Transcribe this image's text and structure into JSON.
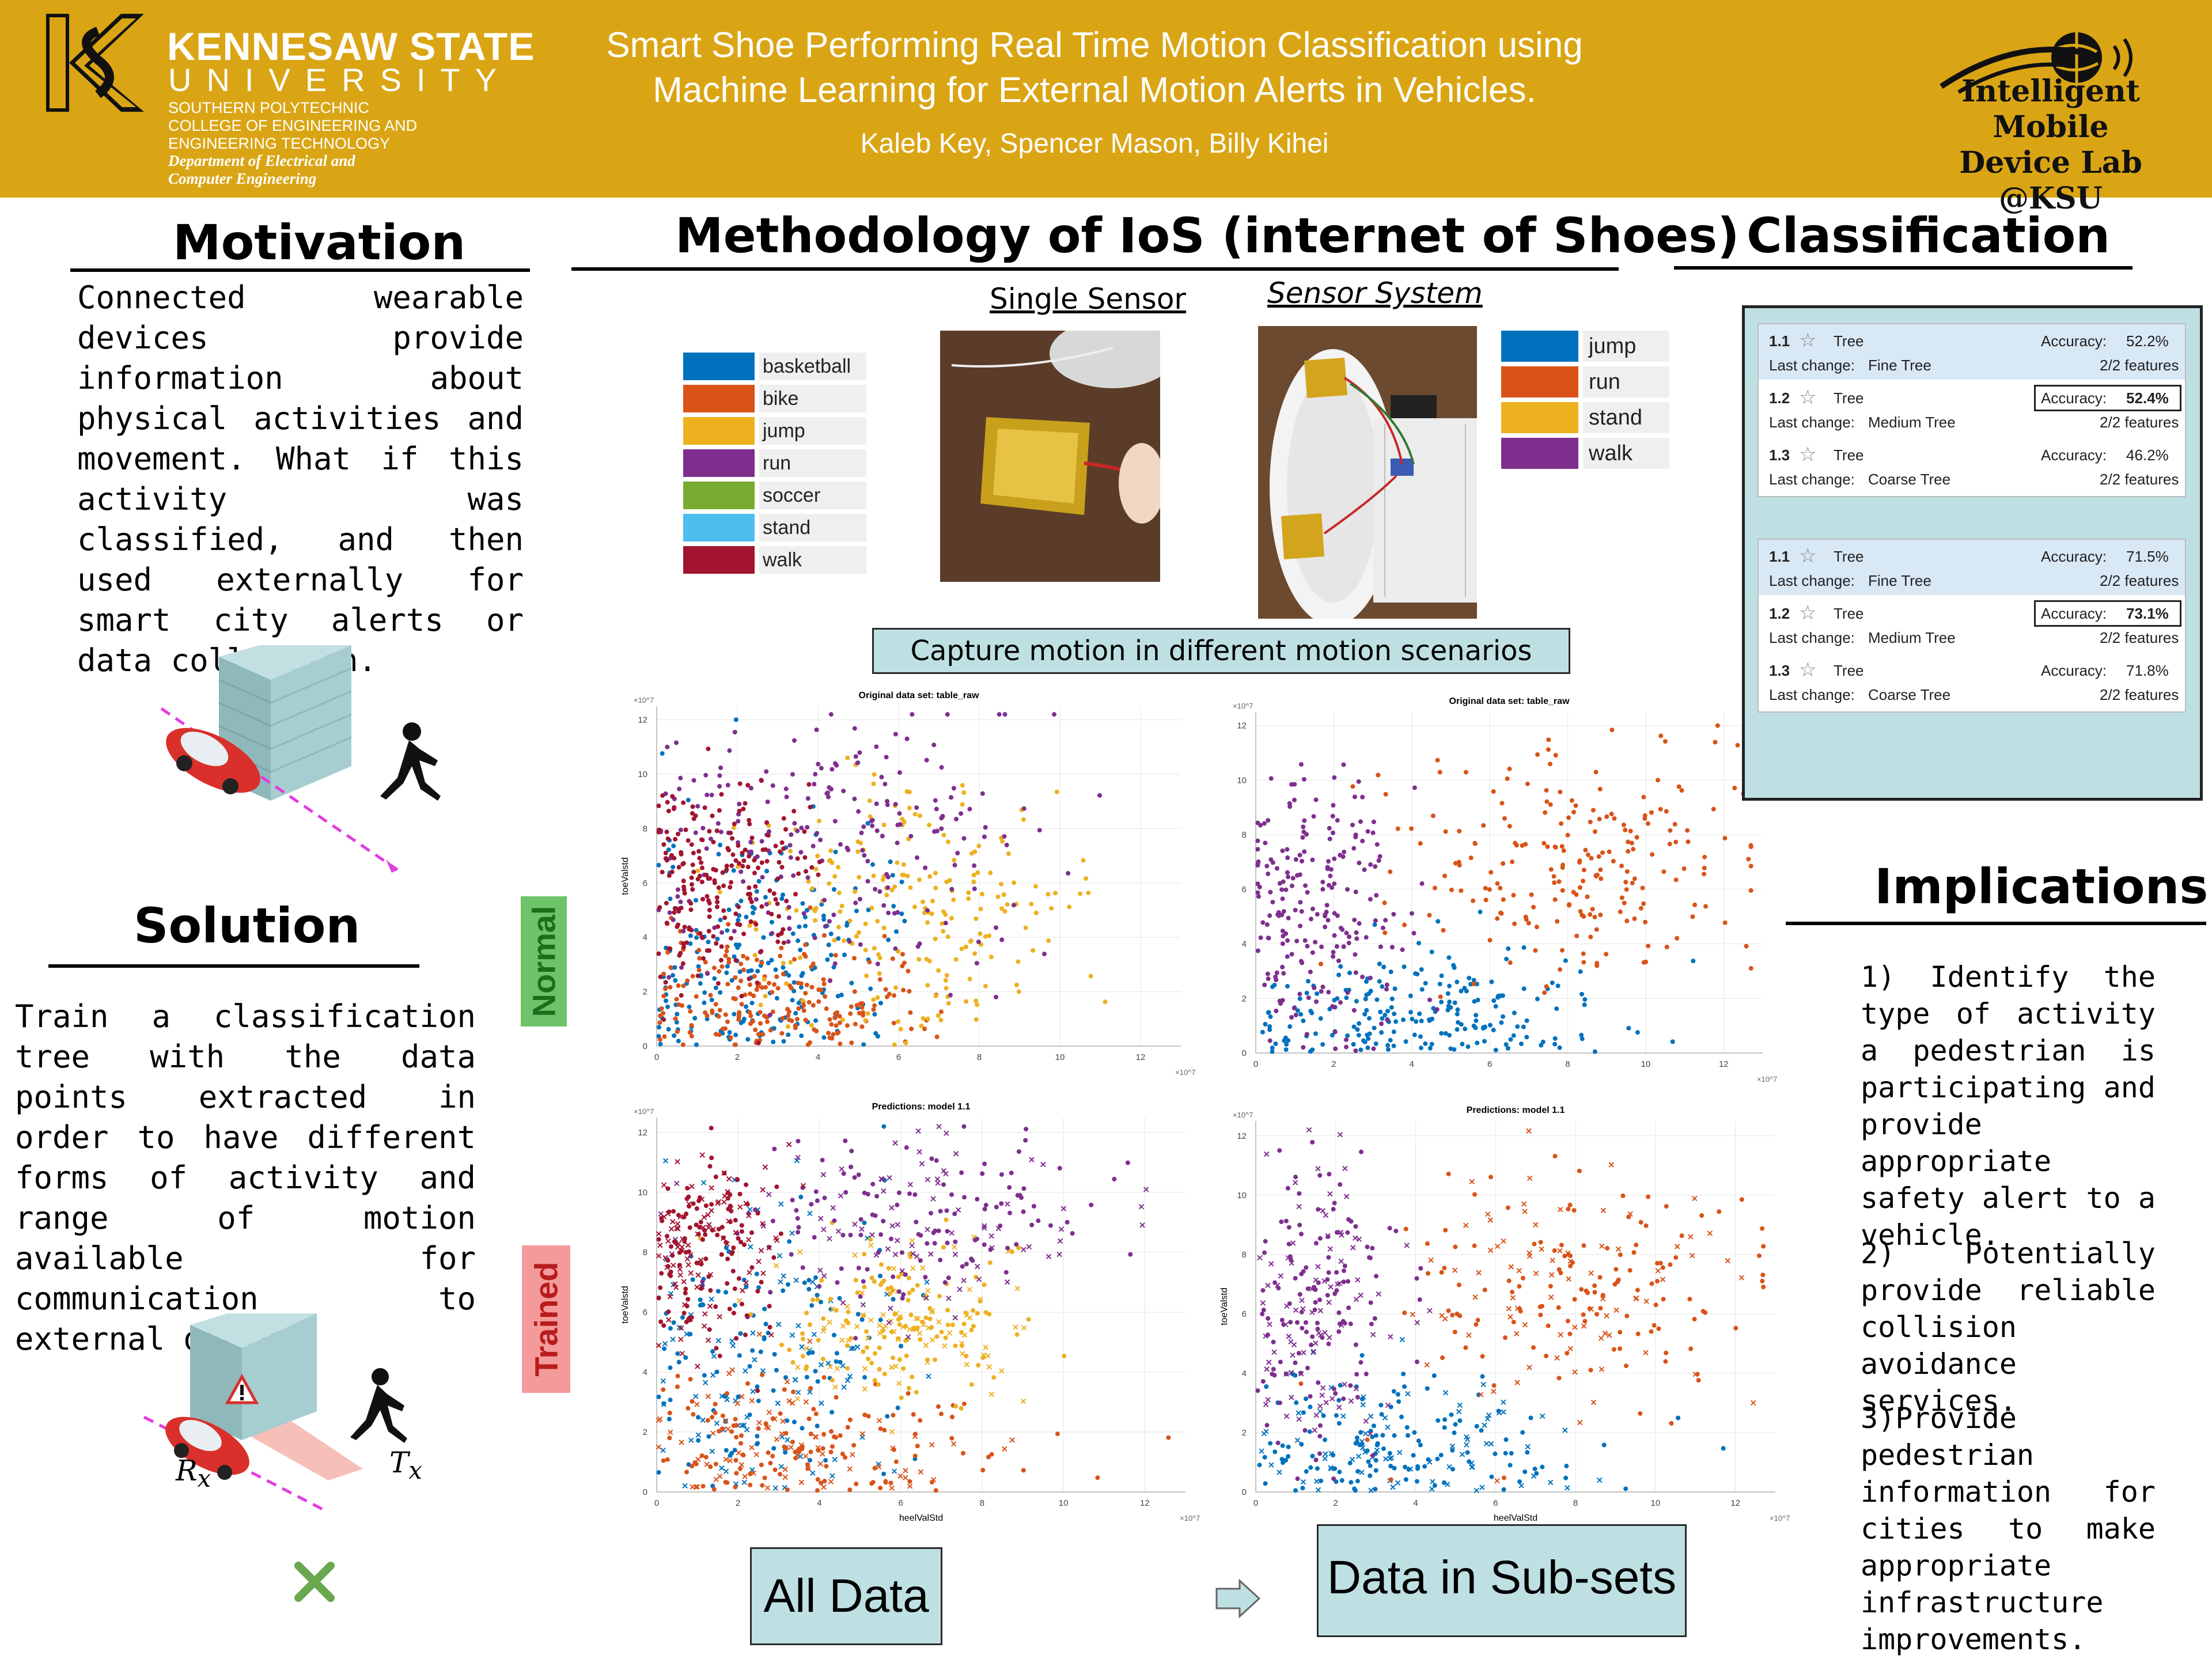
{
  "header": {
    "university_title": "KENNESAW STATE",
    "university_word": "UNIVERSITY",
    "college_line1": "SOUTHERN POLYTECHNIC",
    "college_line2": "COLLEGE OF ENGINEERING AND",
    "college_line3": "ENGINEERING TECHNOLOGY",
    "department_line1": "Department of Electrical and",
    "department_line2": "Computer Engineering",
    "title_line1": "Smart Shoe Performing Real Time Motion Classification using",
    "title_line2": "Machine Learning for External Motion Alerts in Vehicles.",
    "authors": "Kaleb Key, Spencer Mason, Billy Kihei",
    "lab_line1": "Intelligent Mobile",
    "lab_line2": "Device Lab",
    "lab_line3": "@KSU",
    "bg_color": "#DAA515"
  },
  "motivation": {
    "heading": "Motivation",
    "text": "Connected wearable devices provide information about physical activities and movement. What if this activity was classified, and then used externally for smart city alerts or data collection."
  },
  "solution": {
    "heading": "Solution",
    "text": "Train a classification tree with the data points extracted in order to have different forms of activity and range of motion available for communication to external devices",
    "rx_label": "R",
    "rx_sub": "x",
    "tx_label": "T",
    "tx_sub": "x"
  },
  "methodology": {
    "heading": "Methodology of IoS (internet of Shoes)",
    "single_sensor_caption": "Single Sensor",
    "sensor_system_caption": "Sensor System",
    "capture_label": "Capture motion in different motion scenarios",
    "normal_tag": "Normal",
    "trained_tag": "Trained",
    "all_data_label": "All Data",
    "subsets_label": "Data in Sub-sets",
    "legend_all": [
      {
        "label": "basketball",
        "color": "#0072BD"
      },
      {
        "label": "bike",
        "color": "#D95319"
      },
      {
        "label": "jump",
        "color": "#EDB120"
      },
      {
        "label": "run",
        "color": "#7E2F8E"
      },
      {
        "label": "soccer",
        "color": "#77AC30"
      },
      {
        "label": "stand",
        "color": "#4DBEEE"
      },
      {
        "label": "walk",
        "color": "#A2142F"
      }
    ],
    "legend_subset": [
      {
        "label": "jump",
        "color": "#0072BD"
      },
      {
        "label": "run",
        "color": "#D95319"
      },
      {
        "label": "stand",
        "color": "#EDB120"
      },
      {
        "label": "walk",
        "color": "#7E2F8E"
      }
    ]
  },
  "classification": {
    "heading": "Classification",
    "groups": [
      {
        "models": [
          {
            "id": "1.1",
            "type": "Tree",
            "accuracy": "Accuracy:",
            "acc_value": "52.2%",
            "last_change": "Last change:",
            "change_value": "Fine Tree",
            "features": "2/2 features",
            "selected": true,
            "best": false
          },
          {
            "id": "1.2",
            "type": "Tree",
            "accuracy": "Accuracy:",
            "acc_value": "52.4%",
            "last_change": "Last change:",
            "change_value": "Medium Tree",
            "features": "2/2 features",
            "selected": false,
            "best": true
          },
          {
            "id": "1.3",
            "type": "Tree",
            "accuracy": "Accuracy:",
            "acc_value": "46.2%",
            "last_change": "Last change:",
            "change_value": "Coarse Tree",
            "features": "2/2 features",
            "selected": false,
            "best": false
          }
        ]
      },
      {
        "models": [
          {
            "id": "1.1",
            "type": "Tree",
            "accuracy": "Accuracy:",
            "acc_value": "71.5%",
            "last_change": "Last change:",
            "change_value": "Fine Tree",
            "features": "2/2 features",
            "selected": true,
            "best": false
          },
          {
            "id": "1.2",
            "type": "Tree",
            "accuracy": "Accuracy:",
            "acc_value": "73.1%",
            "last_change": "Last change:",
            "change_value": "Medium Tree",
            "features": "2/2 features",
            "selected": false,
            "best": true
          },
          {
            "id": "1.3",
            "type": "Tree",
            "accuracy": "Accuracy:",
            "acc_value": "71.8%",
            "last_change": "Last change:",
            "change_value": "Coarse Tree",
            "features": "2/2 features",
            "selected": false,
            "best": false
          }
        ]
      }
    ]
  },
  "implications": {
    "heading": "Implications",
    "item1": "1) Identify the type of activity a pedestrian is participating and provide appropriate safety alert to a vehicle.",
    "item2": "2) Potentially provide reliable collision avoidance services.",
    "item3": "3)Provide pedestrian information for cities to make appropriate infrastructure improvements."
  },
  "chart_data": [
    {
      "type": "scatter",
      "title": "Original data set: table_raw",
      "xlabel": "",
      "ylabel": "toeValstd",
      "x_exponent": "×10^7",
      "y_exponent": "×10^7",
      "xlim": [
        0,
        13
      ],
      "ylim": [
        0,
        12.5
      ],
      "xticks": [
        0,
        2,
        4,
        6,
        8,
        10,
        12
      ],
      "yticks": [
        0,
        2,
        4,
        6,
        8,
        10,
        12
      ],
      "grid": true,
      "series": [
        {
          "name": "basketball",
          "color": "#0072BD",
          "marker": "dot",
          "cx": 2.5,
          "cy": 3.0,
          "sx": 2.0,
          "sy": 2.8
        },
        {
          "name": "bike",
          "color": "#D95319",
          "marker": "dot",
          "cx": 3.0,
          "cy": 1.6,
          "sx": 2.2,
          "sy": 1.4
        },
        {
          "name": "jump",
          "color": "#EDB120",
          "marker": "dot",
          "cx": 6.0,
          "cy": 5.0,
          "sx": 2.2,
          "sy": 2.4
        },
        {
          "name": "run",
          "color": "#7E2F8E",
          "marker": "dot",
          "cx": 4.5,
          "cy": 7.5,
          "sx": 2.6,
          "sy": 2.3
        },
        {
          "name": "walk",
          "color": "#A2142F",
          "marker": "dot",
          "cx": 1.5,
          "cy": 6.0,
          "sx": 1.2,
          "sy": 2.0
        }
      ]
    },
    {
      "type": "scatter",
      "title": "Original data set: table_raw",
      "xlabel": "",
      "ylabel": "",
      "x_exponent": "×10^7",
      "y_exponent": "×10^7",
      "xlim": [
        0,
        13
      ],
      "ylim": [
        0,
        12.5
      ],
      "xticks": [
        0,
        2,
        4,
        6,
        8,
        10,
        12
      ],
      "yticks": [
        0,
        2,
        4,
        6,
        8,
        10,
        12
      ],
      "grid": true,
      "series": [
        {
          "name": "jump",
          "color": "#0072BD",
          "marker": "dot",
          "cx": 4.0,
          "cy": 1.3,
          "sx": 2.5,
          "sy": 1.1
        },
        {
          "name": "run",
          "color": "#D95319",
          "marker": "dot",
          "cx": 8.0,
          "cy": 7.0,
          "sx": 2.3,
          "sy": 2.2
        },
        {
          "name": "walk",
          "color": "#7E2F8E",
          "marker": "dot",
          "cx": 1.5,
          "cy": 5.5,
          "sx": 1.2,
          "sy": 2.5
        }
      ]
    },
    {
      "type": "scatter",
      "title": "Predictions: model 1.1",
      "xlabel": "heelValStd",
      "ylabel": "toeValstd",
      "x_exponent": "×10^7",
      "y_exponent": "×10^7",
      "xlim": [
        0,
        13
      ],
      "ylim": [
        0,
        12.5
      ],
      "xticks": [
        0,
        2,
        4,
        6,
        8,
        10,
        12
      ],
      "yticks": [
        0,
        2,
        4,
        6,
        8,
        10,
        12
      ],
      "grid": true,
      "series": [
        {
          "name": "basketball",
          "color": "#0072BD",
          "marker": "mixed",
          "cx": 2.5,
          "cy": 4.5,
          "sx": 2.0,
          "sy": 3.0
        },
        {
          "name": "bike",
          "color": "#D95319",
          "marker": "mixed",
          "cx": 3.5,
          "cy": 1.5,
          "sx": 2.5,
          "sy": 1.1
        },
        {
          "name": "jump",
          "color": "#EDB120",
          "marker": "mixed",
          "cx": 6.0,
          "cy": 5.5,
          "sx": 1.5,
          "sy": 1.4
        },
        {
          "name": "run",
          "color": "#7E2F8E",
          "marker": "mixed",
          "cx": 6.5,
          "cy": 9.0,
          "sx": 2.2,
          "sy": 1.5
        },
        {
          "name": "walk",
          "color": "#A2142F",
          "marker": "mixed",
          "cx": 1.2,
          "cy": 8.0,
          "sx": 0.9,
          "sy": 1.6
        }
      ]
    },
    {
      "type": "scatter",
      "title": "Predictions: model 1.1",
      "xlabel": "heelValStd",
      "ylabel": "toeValstd",
      "x_exponent": "×10^7",
      "y_exponent": "×10^7",
      "xlim": [
        0,
        13
      ],
      "ylim": [
        0,
        12.5
      ],
      "xticks": [
        0,
        2,
        4,
        6,
        8,
        10,
        12
      ],
      "yticks": [
        0,
        2,
        4,
        6,
        8,
        10,
        12
      ],
      "grid": true,
      "series": [
        {
          "name": "jump",
          "color": "#0072BD",
          "marker": "mixed",
          "cx": 3.5,
          "cy": 1.5,
          "sx": 2.3,
          "sy": 1.3
        },
        {
          "name": "run",
          "color": "#D95319",
          "marker": "mixed",
          "cx": 8.0,
          "cy": 7.0,
          "sx": 2.3,
          "sy": 2.2
        },
        {
          "name": "walk",
          "color": "#7E2F8E",
          "marker": "mixed",
          "cx": 1.5,
          "cy": 6.5,
          "sx": 1.1,
          "sy": 2.4
        }
      ]
    }
  ]
}
